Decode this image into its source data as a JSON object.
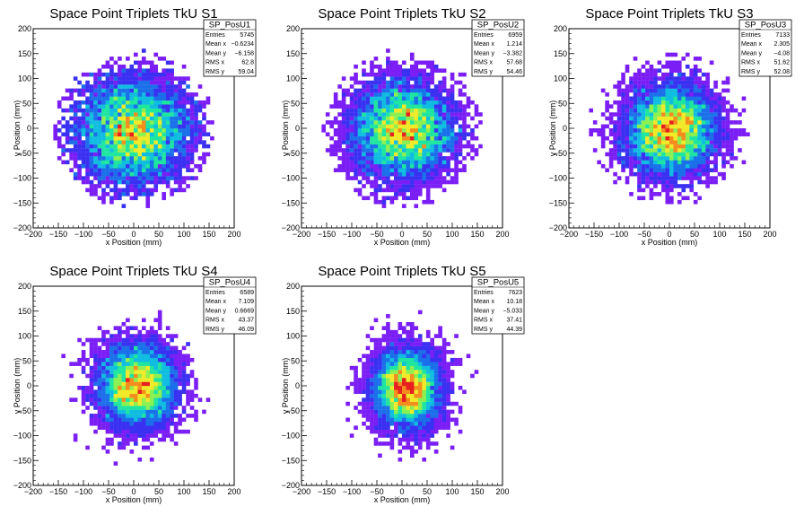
{
  "colors": {
    "palette": [
      "#7b1ef5",
      "#3a30f2",
      "#1b70ea",
      "#10bde0",
      "#1ee6a0",
      "#8cf050",
      "#f0ea28",
      "#f58c1e",
      "#e62020"
    ],
    "frame": "#000000",
    "background": "#ffffff"
  },
  "chart_data": [
    {
      "type": "heatmap",
      "title": "Space Point Triplets TkU S1",
      "xlabel": "x Position (mm)",
      "ylabel": "y Position (mm)",
      "xlim": [
        -200,
        200
      ],
      "ylim": [
        -200,
        200
      ],
      "xticks": [
        "−200",
        "−150",
        "−100",
        "−50",
        "0",
        "50",
        "100",
        "150",
        "200"
      ],
      "yticks": [
        "−200",
        "−150",
        "−100",
        "−50",
        "0",
        "50",
        "100",
        "150",
        "200"
      ],
      "stats": {
        "name": "SP_PosU1",
        "rows": [
          {
            "label": "Entries",
            "value": "5745"
          },
          {
            "label": "Mean x",
            "value": "−0.6234"
          },
          {
            "label": "Mean y",
            "value": "−6.158"
          },
          {
            "label": "RMS x",
            "value": "62.8"
          },
          {
            "label": "RMS y",
            "value": "59.04"
          }
        ]
      },
      "distribution": {
        "entries": 5745,
        "mean_x": -0.6234,
        "mean_y": -6.158,
        "rms_x": 62.8,
        "rms_y": 59.04,
        "radius": 160
      }
    },
    {
      "type": "heatmap",
      "title": "Space Point Triplets TkU S2",
      "xlabel": "x Position (mm)",
      "ylabel": "y Position (mm)",
      "xlim": [
        -200,
        200
      ],
      "ylim": [
        -200,
        200
      ],
      "xticks": [
        "−200",
        "−150",
        "−100",
        "−50",
        "0",
        "50",
        "100",
        "150",
        "200"
      ],
      "yticks": [
        "−200",
        "−150",
        "−100",
        "−50",
        "0",
        "50",
        "100",
        "150",
        "200"
      ],
      "stats": {
        "name": "SP_PosU2",
        "rows": [
          {
            "label": "Entries",
            "value": "6959"
          },
          {
            "label": "Mean x",
            "value": "1.214"
          },
          {
            "label": "Mean y",
            "value": "−3.382"
          },
          {
            "label": "RMS x",
            "value": "57.68"
          },
          {
            "label": "RMS y",
            "value": "54.46"
          }
        ]
      },
      "distribution": {
        "entries": 6959,
        "mean_x": 1.214,
        "mean_y": -3.382,
        "rms_x": 57.68,
        "rms_y": 54.46,
        "radius": 160
      }
    },
    {
      "type": "heatmap",
      "title": "Space Point Triplets TkU S3",
      "xlabel": "x Position (mm)",
      "ylabel": "y Position (mm)",
      "xlim": [
        -200,
        200
      ],
      "ylim": [
        -200,
        200
      ],
      "xticks": [
        "−200",
        "−150",
        "−100",
        "−50",
        "0",
        "50",
        "100",
        "150",
        "200"
      ],
      "yticks": [
        "−200",
        "−150",
        "−100",
        "−50",
        "0",
        "50",
        "100",
        "150",
        "200"
      ],
      "stats": {
        "name": "SP_PosU3",
        "rows": [
          {
            "label": "Entries",
            "value": "7133"
          },
          {
            "label": "Mean x",
            "value": "2.305"
          },
          {
            "label": "Mean y",
            "value": "−4.08"
          },
          {
            "label": "RMS x",
            "value": "51.62"
          },
          {
            "label": "RMS y",
            "value": "52.08"
          }
        ]
      },
      "distribution": {
        "entries": 7133,
        "mean_x": 2.305,
        "mean_y": -4.08,
        "rms_x": 51.62,
        "rms_y": 52.08,
        "radius": 160
      }
    },
    {
      "type": "heatmap",
      "title": "Space Point Triplets TkU S4",
      "xlabel": "x Position (mm)",
      "ylabel": "y Position (mm)",
      "xlim": [
        -200,
        200
      ],
      "ylim": [
        -200,
        200
      ],
      "xticks": [
        "−200",
        "−150",
        "−100",
        "−50",
        "0",
        "50",
        "100",
        "150",
        "200"
      ],
      "yticks": [
        "−200",
        "−150",
        "−100",
        "−50",
        "0",
        "50",
        "100",
        "150",
        "200"
      ],
      "stats": {
        "name": "SP_PosU4",
        "rows": [
          {
            "label": "Entries",
            "value": "6589"
          },
          {
            "label": "Mean x",
            "value": "7.109"
          },
          {
            "label": "Mean y",
            "value": "0.6669"
          },
          {
            "label": "RMS x",
            "value": "43.37"
          },
          {
            "label": "RMS y",
            "value": "46.09"
          }
        ]
      },
      "distribution": {
        "entries": 6589,
        "mean_x": 7.109,
        "mean_y": 0.6669,
        "rms_x": 43.37,
        "rms_y": 46.09,
        "radius": 160
      }
    },
    {
      "type": "heatmap",
      "title": "Space Point Triplets TkU S5",
      "xlabel": "x Position (mm)",
      "ylabel": "y Position (mm)",
      "xlim": [
        -200,
        200
      ],
      "ylim": [
        -200,
        200
      ],
      "xticks": [
        "−200",
        "−150",
        "−100",
        "−50",
        "0",
        "50",
        "100",
        "150",
        "200"
      ],
      "yticks": [
        "−200",
        "−150",
        "−100",
        "−50",
        "0",
        "50",
        "100",
        "150",
        "200"
      ],
      "stats": {
        "name": "SP_PosU5",
        "rows": [
          {
            "label": "Entries",
            "value": "7623"
          },
          {
            "label": "Mean x",
            "value": "10.18"
          },
          {
            "label": "Mean y",
            "value": "−5.033"
          },
          {
            "label": "RMS x",
            "value": "37.41"
          },
          {
            "label": "RMS y",
            "value": "44.39"
          }
        ]
      },
      "distribution": {
        "entries": 7623,
        "mean_x": 10.18,
        "mean_y": -5.033,
        "rms_x": 37.41,
        "rms_y": 44.39,
        "radius": 160
      }
    }
  ]
}
